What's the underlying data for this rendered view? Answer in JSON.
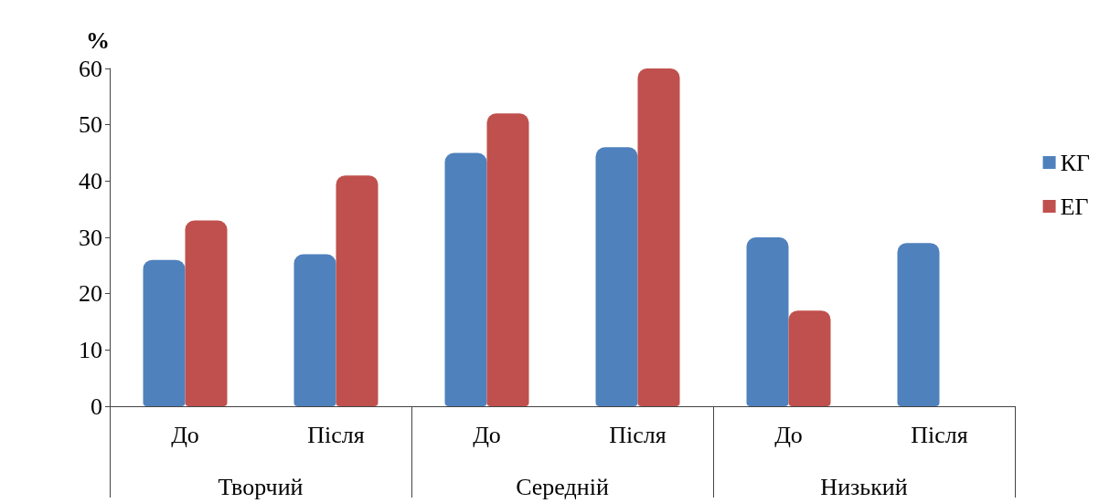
{
  "chart_data": {
    "type": "bar",
    "ylabel": "%",
    "categories": [
      "До",
      "Після",
      "До",
      "Після",
      "До",
      "Після"
    ],
    "series": [
      {
        "name": "КГ",
        "color": "#4f81bd",
        "values": [
          26,
          27,
          45,
          46,
          30,
          29
        ]
      },
      {
        "name": "ЕГ",
        "color": "#c0504d",
        "values": [
          33,
          41,
          52,
          60,
          17,
          0
        ]
      }
    ],
    "ylim": [
      0,
      60
    ],
    "yticks": [
      0,
      10,
      20,
      30,
      40,
      50,
      60
    ],
    "grid": false,
    "legend": "right",
    "annotations": [
      "Творчий",
      "Середній",
      "Низький"
    ]
  }
}
